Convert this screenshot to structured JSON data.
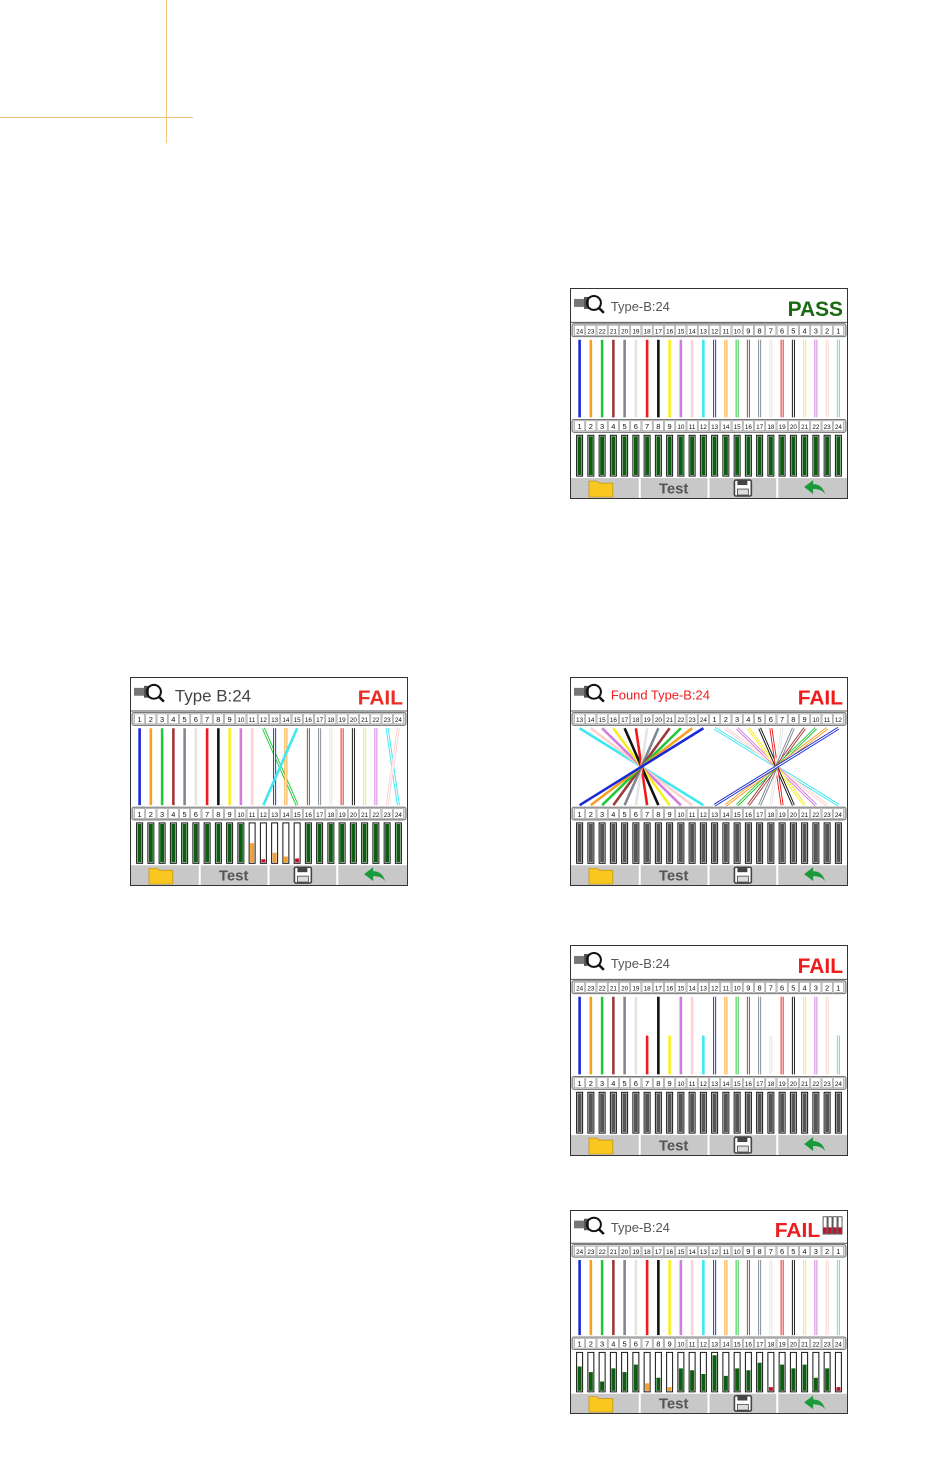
{
  "palette": {
    "blue": "#1a2bd6",
    "orange": "#f5a020",
    "green": "#22c83a",
    "brown": "#a03a3a",
    "gray": "#7f8792",
    "white": "#e4e4e4",
    "red": "#ee1c1c",
    "black": "#111111",
    "yellow": "#f6ee1e",
    "violet": "#d07ce0",
    "pink": "#ffd0d0",
    "cyan": "#3ee8f0",
    "bar_green": "#0e5e12",
    "bar_orange": "#f0a030",
    "bar_red": "#c0102a",
    "bar_gray": "#555555",
    "pass": "#1a6a14",
    "fail": "#ee1c1c",
    "footer_bg": "#c8c8c8",
    "folder": "#f8c820",
    "back": "#1a9a3a"
  },
  "footer": {
    "test_label": "Test",
    "folder_icon": "folder-icon",
    "save_icon": "save-icon",
    "back_icon": "back-arrow-icon"
  },
  "screens": [
    {
      "id": "s1",
      "title": "Type-B:24",
      "title_color": "#555555",
      "title_size": "small",
      "status": "PASS",
      "status_color": "#1a6a14",
      "top_labels": [
        24,
        23,
        22,
        21,
        20,
        19,
        18,
        17,
        16,
        15,
        14,
        13,
        12,
        11,
        10,
        9,
        8,
        7,
        6,
        5,
        4,
        3,
        2,
        1
      ],
      "bottom_labels": [
        1,
        2,
        3,
        4,
        5,
        6,
        7,
        8,
        9,
        10,
        11,
        12,
        13,
        14,
        15,
        16,
        17,
        18,
        19,
        20,
        21,
        22,
        23,
        24
      ],
      "wire_colors": [
        "blue",
        "orange",
        "green",
        "brown",
        "gray",
        "white",
        "red",
        "black",
        "yellow",
        "violet",
        "pink",
        "cyan",
        "blue/white",
        "orange/white",
        "green/white",
        "brown/white",
        "gray/white",
        "white/white",
        "red/white",
        "black/white",
        "yellow/white",
        "violet/white",
        "pink/white",
        "cyan/white"
      ],
      "wire_to": [
        1,
        2,
        3,
        4,
        5,
        6,
        7,
        8,
        9,
        10,
        11,
        12,
        13,
        14,
        15,
        16,
        17,
        18,
        19,
        20,
        21,
        22,
        23,
        24
      ],
      "wire_len": [
        1,
        1,
        1,
        1,
        1,
        1,
        1,
        1,
        1,
        1,
        1,
        1,
        1,
        1,
        1,
        1,
        1,
        1,
        1,
        1,
        1,
        1,
        1,
        1
      ],
      "bar_fill": [
        1,
        1,
        1,
        1,
        1,
        1,
        1,
        1,
        1,
        1,
        1,
        1,
        1,
        1,
        1,
        1,
        1,
        1,
        1,
        1,
        1,
        1,
        1,
        1
      ],
      "bar_color": [
        "g",
        "g",
        "g",
        "g",
        "g",
        "g",
        "g",
        "g",
        "g",
        "g",
        "g",
        "g",
        "g",
        "g",
        "g",
        "g",
        "g",
        "g",
        "g",
        "g",
        "g",
        "g",
        "g",
        "g"
      ]
    },
    {
      "id": "s2",
      "title": "Type B:24",
      "title_color": "#444444",
      "title_size": "large",
      "status": "FAIL",
      "status_color": "#e8302a",
      "top_labels": [
        1,
        2,
        3,
        4,
        5,
        6,
        7,
        8,
        9,
        10,
        11,
        12,
        13,
        14,
        15,
        16,
        17,
        18,
        19,
        20,
        21,
        22,
        23,
        24
      ],
      "bottom_labels": [
        1,
        2,
        3,
        4,
        5,
        6,
        7,
        8,
        9,
        10,
        11,
        12,
        13,
        14,
        15,
        16,
        17,
        18,
        19,
        20,
        21,
        22,
        23,
        24
      ],
      "wire_colors": [
        "blue",
        "orange",
        "green",
        "brown",
        "gray",
        "white",
        "red",
        "black",
        "yellow",
        "violet",
        "pink",
        "green/white",
        "blue/white",
        "orange/white",
        "cyan",
        "brown/white",
        "gray/white",
        "white/white",
        "red/white",
        "black/white",
        "yellow/white",
        "violet/white",
        "cyan/white",
        "pink/white"
      ],
      "wire_to": [
        1,
        2,
        3,
        4,
        5,
        6,
        7,
        8,
        9,
        10,
        11,
        15,
        13,
        14,
        12,
        16,
        17,
        18,
        19,
        20,
        21,
        22,
        24,
        23
      ],
      "wire_len": [
        1,
        1,
        1,
        1,
        1,
        1,
        1,
        1,
        1,
        1,
        1,
        1,
        1,
        1,
        1,
        1,
        1,
        1,
        1,
        1,
        1,
        1,
        1,
        1
      ],
      "bar_fill": [
        1,
        1,
        1,
        1,
        1,
        1,
        1,
        1,
        1,
        1,
        0.5,
        0.08,
        0.25,
        0.15,
        0.1,
        1,
        1,
        1,
        1,
        1,
        1,
        1,
        1,
        1
      ],
      "bar_color": [
        "g",
        "g",
        "g",
        "g",
        "g",
        "g",
        "g",
        "g",
        "g",
        "g",
        "o",
        "r",
        "o",
        "o",
        "r",
        "g",
        "g",
        "g",
        "g",
        "g",
        "g",
        "g",
        "g",
        "g"
      ]
    },
    {
      "id": "s3",
      "title": "Found Type-B:24",
      "title_color": "#ee1c1c",
      "title_size": "small",
      "status": "FAIL",
      "status_color": "#ee1c1c",
      "top_labels": [
        13,
        14,
        15,
        16,
        17,
        18,
        19,
        20,
        21,
        22,
        23,
        24,
        1,
        2,
        3,
        4,
        5,
        6,
        7,
        8,
        9,
        10,
        11,
        12
      ],
      "bottom_labels": [
        1,
        2,
        3,
        4,
        5,
        6,
        7,
        8,
        9,
        10,
        11,
        12,
        13,
        14,
        15,
        16,
        17,
        18,
        19,
        20,
        21,
        22,
        23,
        24
      ],
      "wire_colors": [
        "cyan",
        "pink",
        "violet",
        "yellow",
        "black",
        "red",
        "white",
        "gray",
        "brown",
        "green",
        "orange",
        "blue",
        "cyan/white",
        "pink/white",
        "violet/white",
        "yellow/white",
        "black/white",
        "red/white",
        "white/white",
        "gray/white",
        "brown/white",
        "green/white",
        "orange/white",
        "blue/white"
      ],
      "wire_to": [
        12,
        11,
        10,
        9,
        8,
        7,
        6,
        5,
        4,
        3,
        2,
        1,
        24,
        23,
        22,
        21,
        20,
        19,
        18,
        17,
        16,
        15,
        14,
        13
      ],
      "wire_len": [
        1,
        1,
        1,
        1,
        1,
        1,
        1,
        1,
        1,
        1,
        1,
        1,
        1,
        1,
        1,
        1,
        1,
        1,
        1,
        1,
        1,
        1,
        1,
        1
      ],
      "bar_fill": [
        1,
        1,
        1,
        1,
        1,
        1,
        1,
        1,
        1,
        1,
        1,
        1,
        1,
        1,
        1,
        1,
        1,
        1,
        1,
        1,
        1,
        1,
        1,
        1
      ],
      "bar_color": [
        "k",
        "k",
        "k",
        "k",
        "k",
        "k",
        "k",
        "k",
        "k",
        "k",
        "k",
        "k",
        "k",
        "k",
        "k",
        "k",
        "k",
        "k",
        "k",
        "k",
        "k",
        "k",
        "k",
        "k"
      ]
    },
    {
      "id": "s4",
      "title": "Type-B:24",
      "title_color": "#555555",
      "title_size": "small",
      "status": "FAIL",
      "status_color": "#ee1c1c",
      "top_labels": [
        24,
        23,
        22,
        21,
        20,
        19,
        18,
        17,
        16,
        15,
        14,
        13,
        12,
        11,
        10,
        9,
        8,
        7,
        6,
        5,
        4,
        3,
        2,
        1
      ],
      "bottom_labels": [
        1,
        2,
        3,
        4,
        5,
        6,
        7,
        8,
        9,
        10,
        11,
        12,
        13,
        14,
        15,
        16,
        17,
        18,
        19,
        20,
        21,
        22,
        23,
        24
      ],
      "wire_colors": [
        "blue",
        "orange",
        "green",
        "brown",
        "gray",
        "white",
        "red",
        "black",
        "yellow",
        "violet",
        "pink",
        "cyan",
        "blue/white",
        "orange/white",
        "green/white",
        "brown/white",
        "gray/white",
        "white/white",
        "red/white",
        "black/white",
        "yellow/white",
        "violet/white",
        "pink/white",
        "cyan/white"
      ],
      "wire_to": [
        1,
        2,
        3,
        4,
        5,
        6,
        7,
        8,
        9,
        10,
        11,
        12,
        13,
        14,
        15,
        16,
        17,
        18,
        19,
        20,
        21,
        22,
        23,
        24
      ],
      "wire_len": [
        1,
        1,
        1,
        1,
        1,
        1,
        0.5,
        1,
        0.5,
        1,
        1,
        0.5,
        1,
        1,
        1,
        1,
        1,
        0.5,
        1,
        1,
        1,
        1,
        1,
        0.5
      ],
      "bar_fill": [
        1,
        1,
        1,
        1,
        1,
        1,
        1,
        1,
        1,
        1,
        1,
        1,
        1,
        1,
        1,
        1,
        1,
        1,
        1,
        1,
        1,
        1,
        1,
        1
      ],
      "bar_color": [
        "k",
        "k",
        "k",
        "k",
        "k",
        "k",
        "k",
        "k",
        "k",
        "k",
        "k",
        "k",
        "k",
        "k",
        "k",
        "k",
        "k",
        "k",
        "k",
        "k",
        "k",
        "k",
        "k",
        "k"
      ]
    },
    {
      "id": "s5",
      "title": "Type-B:24",
      "title_color": "#555555",
      "title_size": "small",
      "status": "FAIL",
      "status_color": "#ee1c1c",
      "status_icon": "battery-icon",
      "top_labels": [
        24,
        23,
        22,
        21,
        20,
        19,
        18,
        17,
        16,
        15,
        14,
        13,
        12,
        11,
        10,
        9,
        8,
        7,
        6,
        5,
        4,
        3,
        2,
        1
      ],
      "bottom_labels": [
        1,
        2,
        3,
        4,
        5,
        6,
        7,
        8,
        9,
        10,
        11,
        12,
        13,
        14,
        15,
        16,
        17,
        18,
        19,
        20,
        21,
        22,
        23,
        24
      ],
      "wire_colors": [
        "blue",
        "orange",
        "green",
        "brown",
        "gray",
        "white",
        "red",
        "black",
        "yellow",
        "violet",
        "pink",
        "cyan",
        "blue/white",
        "orange/white",
        "green/white",
        "brown/white",
        "gray/white",
        "white/white",
        "red/white",
        "black/white",
        "yellow/white",
        "violet/white",
        "pink/white",
        "cyan/white"
      ],
      "wire_to": [
        1,
        2,
        3,
        4,
        5,
        6,
        7,
        8,
        9,
        10,
        11,
        12,
        13,
        14,
        15,
        16,
        17,
        18,
        19,
        20,
        21,
        22,
        23,
        24
      ],
      "wire_len": [
        1,
        1,
        1,
        1,
        1,
        1,
        1,
        1,
        1,
        1,
        1,
        1,
        1,
        1,
        1,
        1,
        1,
        1,
        1,
        1,
        1,
        1,
        1,
        1
      ],
      "bar_fill": [
        0.65,
        0.5,
        0.25,
        0.6,
        0.5,
        0.7,
        0.2,
        0.35,
        0.1,
        0.6,
        0.55,
        0.45,
        0.95,
        0.4,
        0.6,
        0.55,
        0.75,
        0.1,
        0.7,
        0.6,
        0.7,
        0.35,
        0.6,
        0.1
      ],
      "bar_color": [
        "g",
        "g",
        "g",
        "g",
        "g",
        "g",
        "o",
        "g",
        "o",
        "g",
        "g",
        "g",
        "g",
        "g",
        "g",
        "g",
        "g",
        "r",
        "g",
        "g",
        "g",
        "g",
        "g",
        "r"
      ]
    }
  ]
}
